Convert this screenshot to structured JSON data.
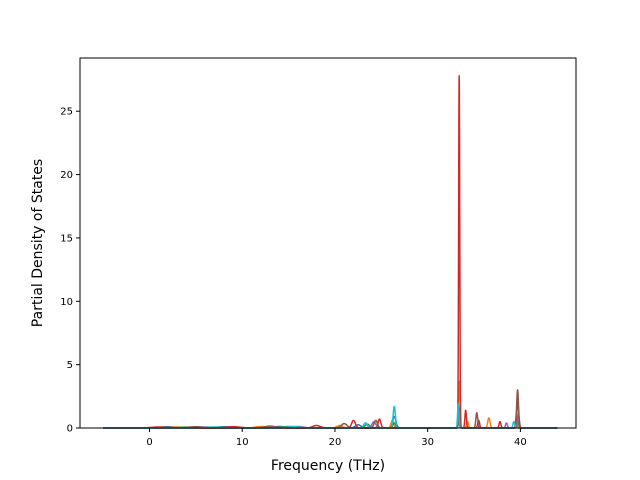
{
  "chart_data": {
    "type": "line",
    "title": "",
    "xlabel": "Frequency (THz)",
    "ylabel": "Partial Density of States",
    "xlim": [
      -7.5,
      46.0
    ],
    "ylim": [
      0,
      29.2
    ],
    "xticks": [
      0,
      10,
      20,
      30,
      40
    ],
    "yticks": [
      0,
      5,
      10,
      15,
      20,
      25
    ],
    "grid": false,
    "legend": "none",
    "series": [
      {
        "color": "#1f77b4",
        "peaks": [
          [
            2,
            0.1,
            0.8
          ],
          [
            8,
            0.1,
            0.8
          ],
          [
            14,
            0.12,
            0.6
          ],
          [
            22.5,
            0.25,
            0.3
          ],
          [
            26.4,
            0.9,
            0.18
          ],
          [
            33.4,
            0.5,
            0.1
          ],
          [
            39.6,
            0.3,
            0.12
          ]
        ]
      },
      {
        "color": "#ff7f0e",
        "peaks": [
          [
            3,
            0.08,
            0.8
          ],
          [
            12,
            0.12,
            0.6
          ],
          [
            20.5,
            0.2,
            0.3
          ],
          [
            26.2,
            0.6,
            0.15
          ],
          [
            33.4,
            3.7,
            0.08
          ],
          [
            34.3,
            0.5,
            0.1
          ],
          [
            36.6,
            0.8,
            0.12
          ],
          [
            39.6,
            1.2,
            0.1
          ]
        ]
      },
      {
        "color": "#2ca02c",
        "peaks": [
          [
            4,
            0.07,
            0.8
          ],
          [
            15,
            0.12,
            0.6
          ],
          [
            23.5,
            0.3,
            0.25
          ],
          [
            26.4,
            0.4,
            0.15
          ],
          [
            33.4,
            1.2,
            0.08
          ],
          [
            39.7,
            0.8,
            0.1
          ]
        ]
      },
      {
        "color": "#d62728",
        "peaks": [
          [
            1,
            0.08,
            0.8
          ],
          [
            9,
            0.1,
            0.8
          ],
          [
            18,
            0.2,
            0.4
          ],
          [
            22,
            0.6,
            0.2
          ],
          [
            24.8,
            0.7,
            0.15
          ],
          [
            33.4,
            27.8,
            0.06
          ],
          [
            34.1,
            1.4,
            0.08
          ],
          [
            35.5,
            0.6,
            0.1
          ],
          [
            37.8,
            0.5,
            0.1
          ],
          [
            39.7,
            2.2,
            0.1
          ]
        ]
      },
      {
        "color": "#9467bd",
        "peaks": [
          [
            6,
            0.08,
            0.8
          ],
          [
            16,
            0.12,
            0.6
          ],
          [
            24.2,
            0.5,
            0.2
          ],
          [
            33.4,
            0.9,
            0.08
          ],
          [
            38.5,
            0.4,
            0.1
          ],
          [
            39.8,
            1.0,
            0.1
          ]
        ]
      },
      {
        "color": "#8c564b",
        "peaks": [
          [
            5,
            0.1,
            0.8
          ],
          [
            13,
            0.15,
            0.6
          ],
          [
            21,
            0.35,
            0.3
          ],
          [
            24.4,
            0.6,
            0.18
          ],
          [
            33.4,
            1.6,
            0.07
          ],
          [
            35.3,
            1.2,
            0.1
          ],
          [
            39.7,
            3.0,
            0.1
          ]
        ]
      },
      {
        "color": "#17becf",
        "peaks": [
          [
            7,
            0.08,
            0.8
          ],
          [
            15.5,
            0.12,
            0.6
          ],
          [
            23.3,
            0.4,
            0.2
          ],
          [
            26.4,
            1.7,
            0.12
          ],
          [
            33.3,
            1.9,
            0.07
          ],
          [
            39.3,
            0.5,
            0.1
          ]
        ]
      }
    ]
  }
}
